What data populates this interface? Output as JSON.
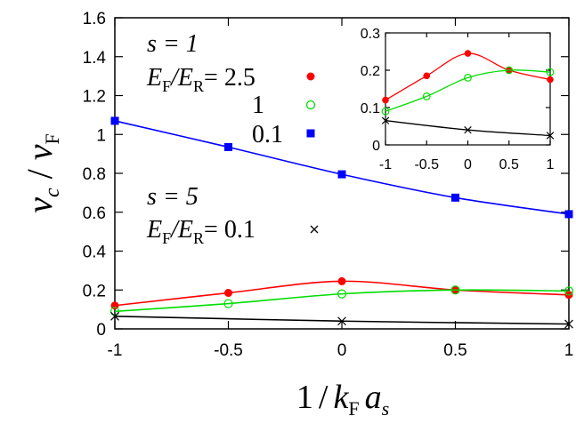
{
  "chart_data": {
    "type": "line",
    "xlabel": {
      "num": "1",
      "slash": "/",
      "k": "k",
      "ksub": "F",
      "a": "a",
      "asub": "s"
    },
    "ylabel": {
      "v": "v",
      "vsub": "c",
      "slash": "/",
      "v2": "v",
      "v2sub": "F"
    },
    "xlim": [
      -1,
      1
    ],
    "ylim": [
      0,
      1.6
    ],
    "xticks": [
      "-1",
      "-0.5",
      "0",
      "0.5",
      "1"
    ],
    "yticks": [
      "0",
      "0.2",
      "0.4",
      "0.6",
      "0.8",
      "1",
      "1.2",
      "1.4",
      "1.6"
    ],
    "grid": false,
    "legend": {
      "group1_title": "s = 1",
      "group1_ratio": "E",
      "group1_ratio_sub1": "F",
      "group1_ratio_slash": "/E",
      "group1_ratio_sub2": "R",
      "group1_eq": "= 2.5",
      "entry_2": "1",
      "entry_3": "0.1",
      "group2_title": "s = 5",
      "group2_eq": "= 0.1"
    },
    "series": [
      {
        "label": "E_F/E_R = 2.5 (s = 1)",
        "color": "#ff0000",
        "marker": "filled-circle",
        "x": [
          -1,
          -0.5,
          0,
          0.5,
          1
        ],
        "y": [
          0.12,
          0.185,
          0.245,
          0.2,
          0.175
        ]
      },
      {
        "label": "E_F/E_R = 1 (s = 1)",
        "color": "#00dd00",
        "marker": "open-circle",
        "x": [
          -1,
          -0.5,
          0,
          0.5,
          1
        ],
        "y": [
          0.09,
          0.13,
          0.18,
          0.2,
          0.195
        ]
      },
      {
        "label": "E_F/E_R = 0.1 (s = 1)",
        "color": "#0000ff",
        "marker": "filled-square",
        "x": [
          -1,
          -0.5,
          0,
          0.5,
          1
        ],
        "y": [
          1.07,
          0.935,
          0.795,
          0.675,
          0.59
        ]
      },
      {
        "label": "E_F/E_R = 0.1 (s = 5)",
        "color": "#000000",
        "marker": "cross",
        "x": [
          -1,
          0,
          1
        ],
        "y": [
          0.065,
          0.04,
          0.025
        ]
      }
    ],
    "inset": {
      "xlim": [
        -1,
        1
      ],
      "ylim": [
        0,
        0.3
      ],
      "xticks": [
        "-1",
        "-0.5",
        "0",
        "0.5",
        "1"
      ],
      "yticks": [
        "0",
        "0.1",
        "0.2",
        "0.3"
      ],
      "series_refs": [
        0,
        1,
        3
      ]
    }
  }
}
